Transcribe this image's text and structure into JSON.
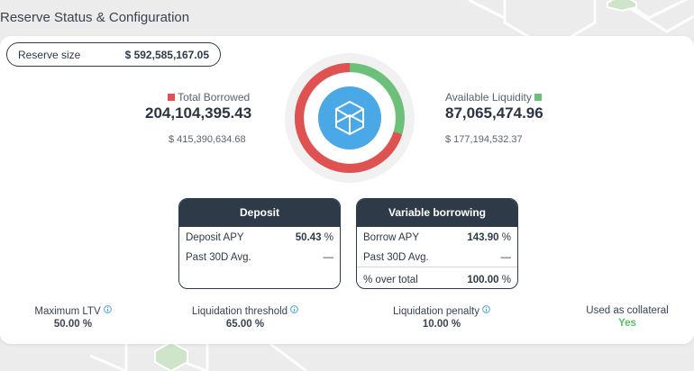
{
  "page": {
    "title": "Reserve Status & Configuration"
  },
  "reserve": {
    "label": "Reserve size",
    "value": "$ 592,585,167.05"
  },
  "borrowed": {
    "label": "Total Borrowed",
    "amount": "204,104,395.43",
    "usd": "$ 415,390,634.68",
    "color": "#e05252"
  },
  "liquidity": {
    "label": "Available Liquidity",
    "amount": "87,065,474.96",
    "usd": "$ 177,194,532.37",
    "color": "#6cc07a"
  },
  "donut": {
    "borrowed_fraction": 0.701,
    "center_icon": "fantom-token-icon",
    "center_color": "#4ba8e6"
  },
  "deposit": {
    "title": "Deposit",
    "apy_label": "Deposit APY",
    "apy_value": "50.43",
    "apy_unit": "%",
    "avg_label": "Past 30D Avg.",
    "avg_value": "—"
  },
  "borrowing": {
    "title": "Variable borrowing",
    "apy_label": "Borrow APY",
    "apy_value": "143.90",
    "apy_unit": "%",
    "avg_label": "Past 30D Avg.",
    "avg_value": "—",
    "share_label": "% over total",
    "share_value": "100.00",
    "share_unit": "%"
  },
  "metrics": {
    "ltv": {
      "label": "Maximum LTV",
      "value": "50.00 %"
    },
    "threshold": {
      "label": "Liquidation threshold",
      "value": "65.00 %"
    },
    "penalty": {
      "label": "Liquidation penalty",
      "value": "10.00 %"
    },
    "collateral": {
      "label": "Used as collateral",
      "value": "Yes",
      "color": "#5cbf6c"
    }
  },
  "colors": {
    "dark": "#2f3a48",
    "info": "#3d9be0"
  }
}
